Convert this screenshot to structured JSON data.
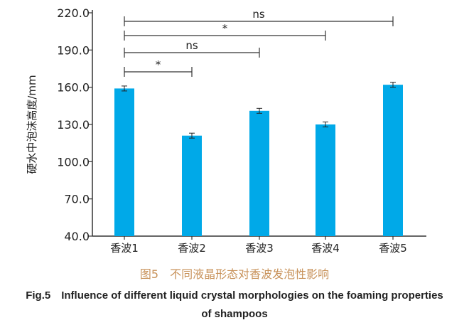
{
  "chart_data": {
    "type": "bar",
    "categories": [
      "香波1",
      "香波2",
      "香波3",
      "香波4",
      "香波5"
    ],
    "values": [
      159,
      121,
      141,
      130,
      162
    ],
    "errors": [
      2,
      2,
      2,
      2,
      2
    ],
    "ylabel": "硬水中泡沫高度/mm",
    "xlabel": "",
    "ylim": [
      40,
      220
    ],
    "yticks": [
      "40.0",
      "70.0",
      "100.0",
      "130.0",
      "160.0",
      "190.0",
      "220.0"
    ],
    "bar_color": "#00a9e8",
    "grid": false,
    "significance": [
      {
        "from": 1,
        "to": 5,
        "label": "ns"
      },
      {
        "from": 1,
        "to": 4,
        "label": "*"
      },
      {
        "from": 1,
        "to": 3,
        "label": "ns"
      },
      {
        "from": 1,
        "to": 2,
        "label": "*"
      }
    ]
  },
  "caption_cn": "图5　不同液晶形态对香波发泡性影响",
  "caption_en": "Fig.5　Influence of different liquid crystal morphologies on the foaming properties of shampoos"
}
